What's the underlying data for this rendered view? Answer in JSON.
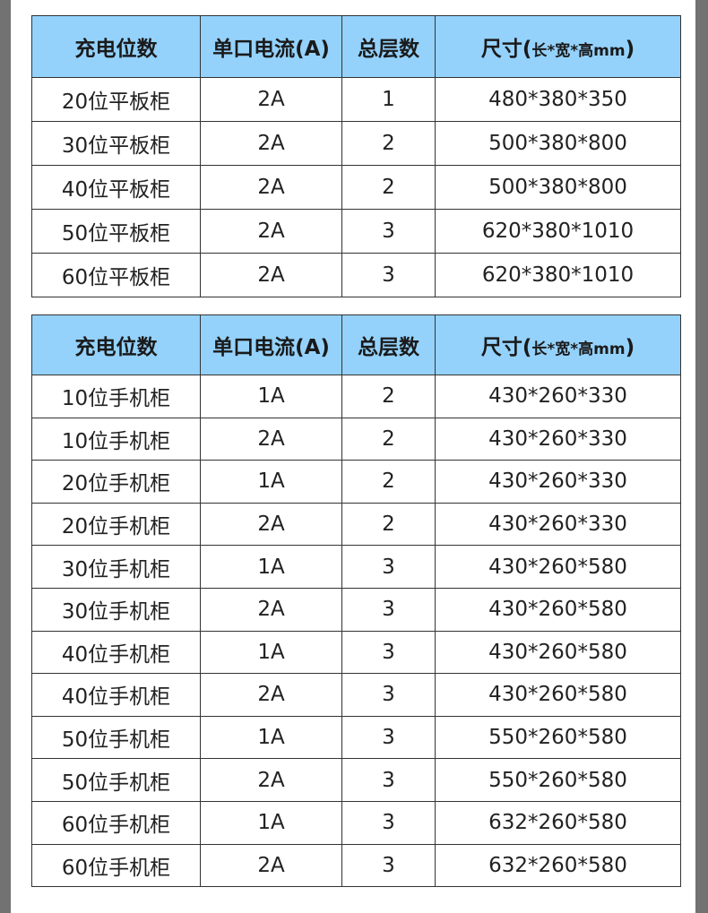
{
  "header": {
    "col1": "充电位数",
    "col2": "单口电流(A)",
    "col3": "总层数",
    "col4_main": "尺寸(",
    "col4_sub": "长*宽*高mm",
    "col4_end": ")"
  },
  "colors": {
    "header_bg": "#94d2fc",
    "side_bar": "#727272"
  },
  "tablet_table": {
    "rows": [
      [
        "20位平板柜",
        "2A",
        "1",
        "480*380*350"
      ],
      [
        "30位平板柜",
        "2A",
        "2",
        "500*380*800"
      ],
      [
        "40位平板柜",
        "2A",
        "2",
        "500*380*800"
      ],
      [
        "50位平板柜",
        "2A",
        "3",
        "620*380*1010"
      ],
      [
        "60位平板柜",
        "2A",
        "3",
        "620*380*1010"
      ]
    ]
  },
  "phone_table": {
    "rows": [
      [
        "10位手机柜",
        "1A",
        "2",
        "430*260*330"
      ],
      [
        "10位手机柜",
        "2A",
        "2",
        "430*260*330"
      ],
      [
        "20位手机柜",
        "1A",
        "2",
        "430*260*330"
      ],
      [
        "20位手机柜",
        "2A",
        "2",
        "430*260*330"
      ],
      [
        "30位手机柜",
        "1A",
        "3",
        "430*260*580"
      ],
      [
        "30位手机柜",
        "2A",
        "3",
        "430*260*580"
      ],
      [
        "40位手机柜",
        "1A",
        "3",
        "430*260*580"
      ],
      [
        "40位手机柜",
        "2A",
        "3",
        "430*260*580"
      ],
      [
        "50位手机柜",
        "1A",
        "3",
        "550*260*580"
      ],
      [
        "50位手机柜",
        "2A",
        "3",
        "550*260*580"
      ],
      [
        "60位手机柜",
        "1A",
        "3",
        "632*260*580"
      ],
      [
        "60位手机柜",
        "2A",
        "3",
        "632*260*580"
      ]
    ]
  }
}
